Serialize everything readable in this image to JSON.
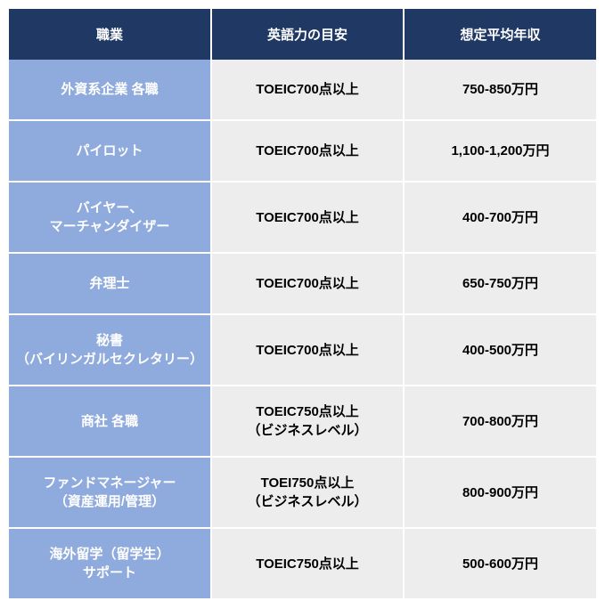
{
  "table": {
    "header": {
      "occupation": "職業",
      "english": "英語力の目安",
      "salary": "想定平均年収"
    },
    "rows": [
      {
        "occupation": "外資系企業 各職",
        "english": "TOEIC700点以上",
        "salary": "750-850万円"
      },
      {
        "occupation": "パイロット",
        "english": "TOEIC700点以上",
        "salary": "1,100-1,200万円"
      },
      {
        "occupation": "バイヤー、\nマーチャンダイザー",
        "english": "TOEIC700点以上",
        "salary": "400-700万円"
      },
      {
        "occupation": "弁理士",
        "english": "TOEIC700点以上",
        "salary": "650-750万円"
      },
      {
        "occupation": "秘書\n（バイリンガルセクレタリー）",
        "english": "TOEIC700点以上",
        "salary": "400-500万円"
      },
      {
        "occupation": "商社 各職",
        "english": "TOEIC750点以上\n（ビジネスレベル）",
        "salary": "700-800万円"
      },
      {
        "occupation": "ファンドマネージャー\n（資産運用/管理）",
        "english": "TOEI750点以上\n（ビジネスレベル）",
        "salary": "800-900万円"
      },
      {
        "occupation": "海外留学（留学生）\nサポート",
        "english": "TOEIC750点以上",
        "salary": "500-600万円"
      }
    ],
    "colors": {
      "header_bg": "#1f3864",
      "occupation_bg": "#8faadc",
      "data_bg": "#ededed",
      "header_text": "#ffffff",
      "occupation_text": "#ffffff",
      "data_text": "#000000"
    }
  }
}
